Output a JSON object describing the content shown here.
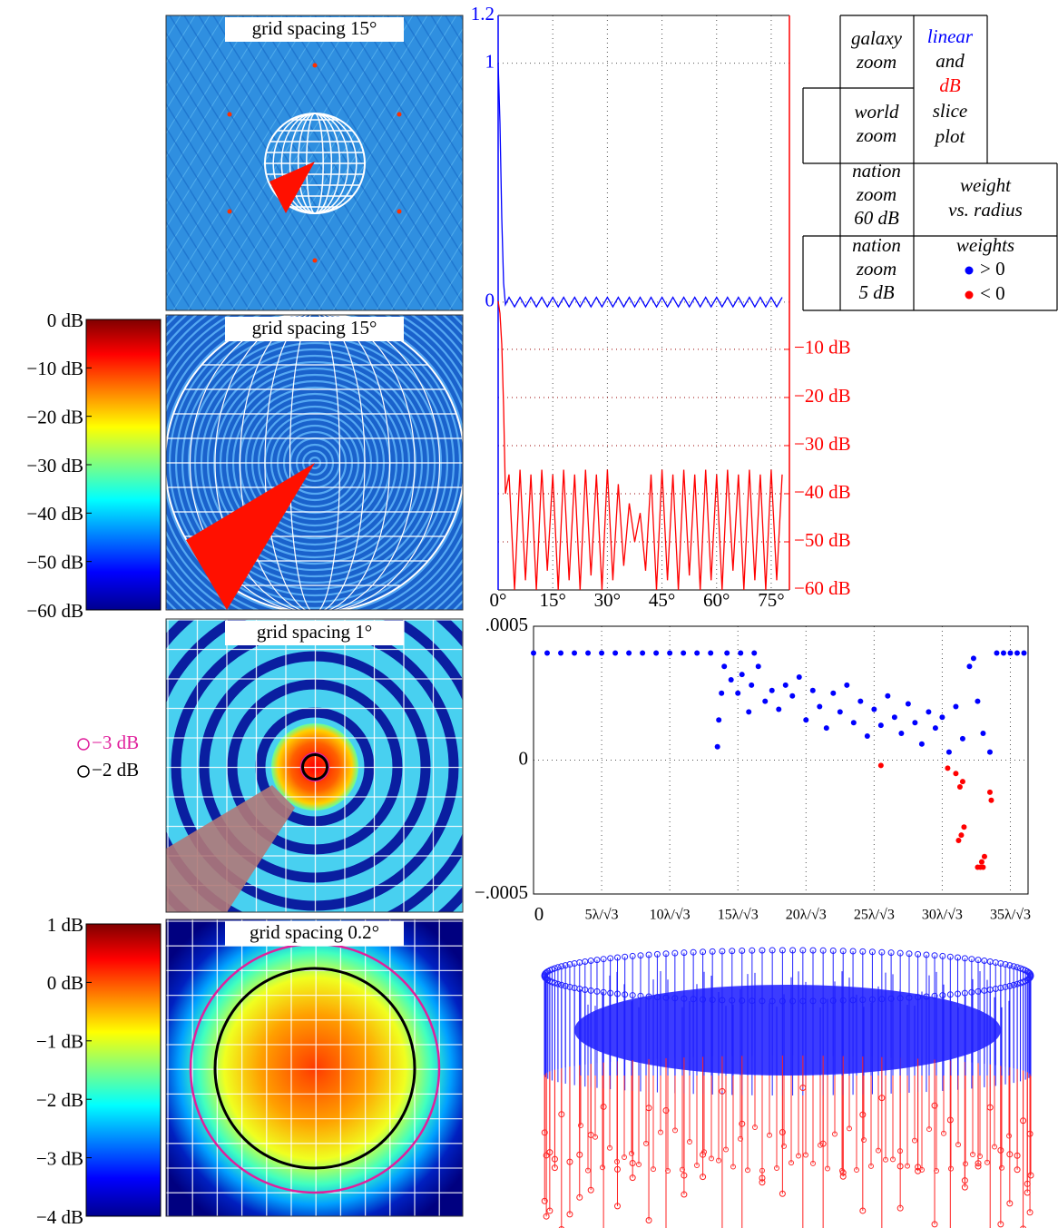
{
  "panels": [
    {
      "label": "grid spacing 15°"
    },
    {
      "label": "grid spacing 15°"
    },
    {
      "label": "grid spacing 1°"
    },
    {
      "label": "grid spacing 0.2°"
    }
  ],
  "contours": [
    {
      "label": "−3 dB",
      "color": "#e0209c"
    },
    {
      "label": "−2 dB",
      "color": "#000000"
    }
  ],
  "legend_table": {
    "cells": [
      [
        "galaxy",
        "zoom"
      ],
      [
        "and",
        "slice",
        "plot"
      ],
      [
        "world",
        "zoom"
      ],
      [
        "nation",
        "zoom",
        "60 dB"
      ],
      [
        "weight",
        "vs. radius"
      ],
      [
        "nation",
        "zoom",
        "5 dB"
      ],
      [
        "weights"
      ]
    ]
  },
  "chart_data": [
    {
      "type": "line",
      "x": [
        0,
        0.5,
        1,
        1.5,
        2,
        3,
        4.5,
        6,
        7.5,
        9,
        10.5,
        12,
        13.5,
        15,
        16.5,
        18,
        19.5,
        21,
        22.5,
        24,
        25.5,
        27,
        28.5,
        30,
        31.5,
        33,
        34.5,
        36,
        37.5,
        39,
        40.5,
        42,
        43.5,
        45,
        46.5,
        48,
        49.5,
        51,
        52.5,
        54,
        55.5,
        57,
        58.5,
        60,
        61.5,
        63,
        64.5,
        66,
        67.5,
        69,
        70.5,
        72,
        73.5,
        75,
        76.5,
        78
      ],
      "xlim": [
        0,
        80
      ],
      "xticks": [
        {
          "value": 0,
          "label": "0°"
        },
        {
          "value": 15,
          "label": "15°"
        },
        {
          "value": 30,
          "label": "30°"
        },
        {
          "value": 45,
          "label": "45°"
        },
        {
          "value": 60,
          "label": "60°"
        },
        {
          "value": 75,
          "label": "75°"
        }
      ],
      "ylim": [
        -1.205,
        1.2
      ],
      "yticks": [
        0,
        1,
        1.2
      ],
      "y2lim": [
        -60,
        59.4
      ],
      "y2ticks": [
        {
          "value": -10,
          "label": "−10 dB"
        },
        {
          "value": -20,
          "label": "−20 dB"
        },
        {
          "value": -30,
          "label": "−30 dB"
        },
        {
          "value": -40,
          "label": "−40 dB"
        },
        {
          "value": -50,
          "label": "−50 dB"
        },
        {
          "value": -60,
          "label": "−60 dB"
        }
      ],
      "grid": true,
      "series": [
        {
          "name": "linear",
          "color": "#0000ff",
          "values": [
            1,
            0.75,
            0.35,
            0.08,
            -0.01,
            0.02,
            -0.02,
            0.02,
            -0.02,
            0.02,
            -0.02,
            0.02,
            -0.02,
            0.02,
            -0.02,
            0.02,
            -0.02,
            0.02,
            -0.02,
            0.02,
            -0.02,
            0.02,
            -0.02,
            0.02,
            -0.02,
            0.02,
            -0.02,
            0.02,
            -0.02,
            0.02,
            -0.02,
            0.02,
            -0.02,
            0.02,
            -0.02,
            0.02,
            -0.02,
            0.02,
            -0.02,
            0.02,
            -0.02,
            0.02,
            -0.02,
            0.02,
            -0.02,
            0.02,
            -0.02,
            0.02,
            -0.02,
            0.02,
            -0.02,
            0.02,
            -0.02,
            0.02,
            -0.02,
            0.02
          ]
        },
        {
          "name": "dB",
          "color": "#ff0000",
          "axis": "y2",
          "values": [
            0,
            -2.5,
            -9,
            -22,
            -40,
            -36,
            -60,
            -35,
            -58,
            -36,
            -60,
            -35,
            -56,
            -36,
            -60,
            -35,
            -58,
            -36,
            -60,
            -35,
            -57,
            -36,
            -60,
            -35,
            -58,
            -38,
            -55,
            -42,
            -50,
            -44,
            -56,
            -36,
            -60,
            -35,
            -58,
            -36,
            -60,
            -35,
            -57,
            -36,
            -60,
            -35,
            -58,
            -36,
            -60,
            -35,
            -56,
            -36,
            -60,
            -35,
            -58,
            -36,
            -60,
            -35,
            -58,
            -36
          ]
        }
      ]
    },
    {
      "type": "scatter",
      "xlim": [
        0,
        36.3
      ],
      "xticks": [
        0,
        {
          "value": 5,
          "label": "5λ/√3"
        },
        {
          "value": 10,
          "label": "10λ/√3"
        },
        {
          "value": 15,
          "label": "15λ/√3"
        },
        {
          "value": 20,
          "label": "20λ/√3"
        },
        {
          "value": 25,
          "label": "25λ/√3"
        },
        {
          "value": 30,
          "label": "30λ/√3"
        },
        {
          "value": 35,
          "label": "35λ/√3"
        }
      ],
      "ylim": [
        -0.0005,
        0.0005
      ],
      "yticks": [
        {
          "value": -0.0005,
          "label": "−.0005"
        },
        0,
        {
          "value": 0.0005,
          "label": ".0005"
        }
      ],
      "grid": true,
      "series": [
        {
          "name": "> 0",
          "color": "#0000ff",
          "x": [
            0,
            1,
            2,
            3,
            4,
            5,
            6,
            7,
            8,
            9,
            10,
            11,
            12,
            13,
            14.2,
            15.2,
            16.2,
            34,
            34.5,
            35,
            35.5,
            36,
            13.5,
            13.6,
            13.8,
            14,
            14.5,
            15,
            15.3,
            15.8,
            16,
            16.5,
            17,
            17.5,
            18,
            18.5,
            19,
            19.5,
            20,
            20.5,
            21,
            21.5,
            22,
            22.5,
            23,
            23.5,
            24,
            24.5,
            25,
            25.5,
            26,
            26.5,
            27,
            27.5,
            28,
            28.5,
            29,
            29.5,
            30,
            30.5,
            31,
            31.5,
            32,
            32.3,
            32.6,
            33,
            33.5
          ],
          "values": [
            0.0004,
            0.0004,
            0.0004,
            0.0004,
            0.0004,
            0.0004,
            0.0004,
            0.0004,
            0.0004,
            0.0004,
            0.0004,
            0.0004,
            0.0004,
            0.0004,
            0.0004,
            0.0004,
            0.0004,
            0.0004,
            0.0004,
            0.0004,
            0.0004,
            0.0004,
            5e-05,
            0.00015,
            0.00025,
            0.00035,
            0.0003,
            0.00025,
            0.00032,
            0.00018,
            0.00028,
            0.00035,
            0.00022,
            0.00026,
            0.00019,
            0.00028,
            0.00024,
            0.00031,
            0.00015,
            0.00026,
            0.0002,
            0.00012,
            0.00025,
            0.00018,
            0.00028,
            0.00014,
            0.00022,
            9e-05,
            0.00019,
            0.00013,
            0.00024,
            0.00016,
            0.0001,
            0.00021,
            0.00014,
            6e-05,
            0.00018,
            0.00012,
            0.00016,
            3e-05,
            0.0002,
            8e-05,
            0.00035,
            0.00038,
            0.00022,
            0.0001,
            3e-05
          ]
        },
        {
          "name": "< 0",
          "color": "#ff0000",
          "x": [
            25.5,
            30.4,
            31,
            31.3,
            31.5,
            31.2,
            31.6,
            31.4,
            33.5,
            33.6,
            32.6,
            32.8,
            33,
            32.9,
            33.1
          ],
          "values": [
            -2e-05,
            -3e-05,
            -5e-05,
            -0.0001,
            -8e-05,
            -0.0003,
            -0.00025,
            -0.00028,
            -0.00012,
            -0.00015,
            -0.0004,
            -0.0004,
            -0.0004,
            -0.00038,
            -0.00036
          ]
        }
      ]
    },
    {
      "type": "colorbar",
      "colormap": "jet",
      "ylim": [
        -60,
        0
      ],
      "yticks": [
        {
          "value": 0,
          "label": "0 dB"
        },
        {
          "value": -10,
          "label": "−10 dB"
        },
        {
          "value": -20,
          "label": "−20 dB"
        },
        {
          "value": -30,
          "label": "−30 dB"
        },
        {
          "value": -40,
          "label": "−40 dB"
        },
        {
          "value": -50,
          "label": "−50 dB"
        },
        {
          "value": -60,
          "label": "−60 dB"
        }
      ]
    },
    {
      "type": "colorbar",
      "colormap": "jet",
      "ylim": [
        -4,
        1
      ],
      "yticks": [
        {
          "value": 1,
          "label": "1 dB"
        },
        {
          "value": 0,
          "label": "0 dB"
        },
        {
          "value": -1,
          "label": "−1 dB"
        },
        {
          "value": -2,
          "label": "−2 dB"
        },
        {
          "value": -3,
          "label": "−3 dB"
        },
        {
          "value": -4,
          "label": "−4 dB"
        }
      ]
    }
  ]
}
